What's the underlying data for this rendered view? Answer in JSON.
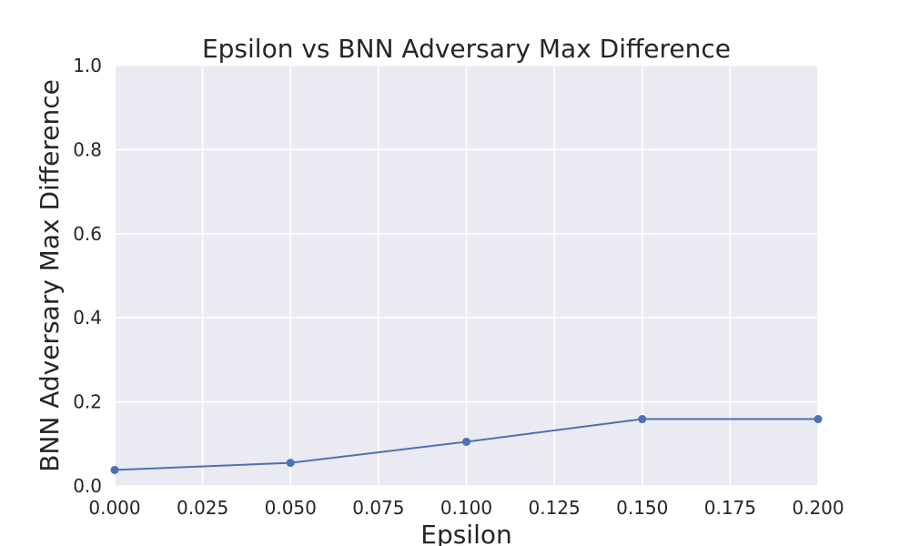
{
  "chart_data": {
    "type": "line",
    "title": "Epsilon vs BNN Adversary Max Difference",
    "xlabel": "Epsilon",
    "ylabel": "BNN Adversary Max Difference",
    "xlim": [
      0.0,
      0.2
    ],
    "ylim": [
      0.0,
      1.0
    ],
    "x_ticks": [
      "0.000",
      "0.025",
      "0.050",
      "0.075",
      "0.100",
      "0.125",
      "0.150",
      "0.175",
      "0.200"
    ],
    "y_ticks": [
      "0.0",
      "0.2",
      "0.4",
      "0.6",
      "0.8",
      "1.0"
    ],
    "grid": true,
    "series": [
      {
        "x": [
          0.0,
          0.05,
          0.1,
          0.15,
          0.2
        ],
        "values": [
          0.038,
          0.055,
          0.105,
          0.159,
          0.159
        ],
        "color": "#4c72b0",
        "marker": "circle"
      }
    ],
    "colors": {
      "plot_background": "#eaeaf2",
      "grid": "#ffffff",
      "line": "#4c72b0",
      "text": "#262626"
    }
  }
}
